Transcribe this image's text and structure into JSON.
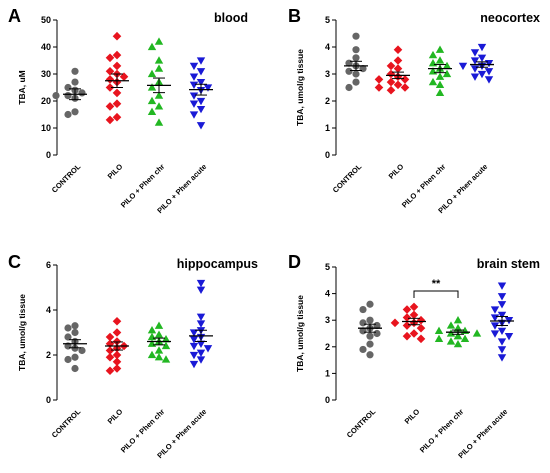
{
  "chart_data": [
    {
      "type": "scatter",
      "letter": "A",
      "title": "blood",
      "ylabel": "TBA, uM",
      "ylim": [
        0,
        50
      ],
      "yticks": [
        0,
        10,
        20,
        30,
        40,
        50
      ],
      "categories": [
        "CONTROL",
        "PILO",
        "PILO + Phen chr",
        "PILO + Phen acute"
      ],
      "series": [
        {
          "color": "#666666",
          "marker": "circle",
          "values": [
            31,
            27,
            25,
            24,
            23,
            22,
            22,
            21,
            16,
            15
          ],
          "mean": 22.5,
          "err": 2
        },
        {
          "color": "#e8141e",
          "marker": "diamond",
          "values": [
            44,
            37,
            36,
            33,
            31,
            30,
            29,
            28,
            27,
            25,
            23,
            19,
            18,
            14,
            13
          ],
          "mean": 27.5,
          "err": 2.5
        },
        {
          "color": "#22b722",
          "marker": "triangle-up",
          "values": [
            42,
            40,
            35,
            32,
            30,
            27,
            25,
            22,
            20,
            18,
            16,
            12
          ],
          "mean": 25.8,
          "err": 2.7
        },
        {
          "color": "#1a1ad6",
          "marker": "triangle-down",
          "values": [
            35,
            33,
            31,
            29,
            27,
            26,
            25,
            24,
            22,
            20,
            19,
            17,
            15,
            11
          ],
          "mean": 24.2,
          "err": 2
        }
      ]
    },
    {
      "type": "scatter",
      "letter": "B",
      "title": "neocortex",
      "ylabel": "TBA, umol/g tissue",
      "ylim": [
        0,
        5
      ],
      "yticks": [
        0,
        1,
        2,
        3,
        4,
        5
      ],
      "categories": [
        "CONTROL",
        "PILO",
        "PILO + Phen chr",
        "PILO + Phen acute"
      ],
      "series": [
        {
          "color": "#666666",
          "marker": "circle",
          "values": [
            4.4,
            3.9,
            3.6,
            3.4,
            3.3,
            3.2,
            3.1,
            3.0,
            2.7,
            2.5
          ],
          "mean": 3.3,
          "err": 0.17
        },
        {
          "color": "#e8141e",
          "marker": "diamond",
          "values": [
            3.9,
            3.5,
            3.3,
            3.2,
            3.0,
            2.9,
            2.8,
            2.8,
            2.7,
            2.6,
            2.5,
            2.5,
            2.4
          ],
          "mean": 2.95,
          "err": 0.12
        },
        {
          "color": "#22b722",
          "marker": "triangle-up",
          "values": [
            3.9,
            3.7,
            3.5,
            3.4,
            3.3,
            3.2,
            3.1,
            3.0,
            2.9,
            2.7,
            2.6,
            2.3
          ],
          "mean": 3.2,
          "err": 0.15
        },
        {
          "color": "#1a1ad6",
          "marker": "triangle-down",
          "values": [
            4.0,
            3.8,
            3.6,
            3.5,
            3.4,
            3.3,
            3.3,
            3.2,
            3.1,
            3.0,
            2.9,
            2.8
          ],
          "mean": 3.35,
          "err": 0.1
        }
      ]
    },
    {
      "type": "scatter",
      "letter": "C",
      "title": "hippocampus",
      "ylabel": "TBA, umol/g tissue",
      "ylim": [
        0,
        6
      ],
      "yticks": [
        0,
        2,
        4,
        6
      ],
      "categories": [
        "CONTROL",
        "PILO",
        "PILO + Phen chr",
        "PILO + Phen acute"
      ],
      "series": [
        {
          "color": "#666666",
          "marker": "circle",
          "values": [
            3.3,
            3.2,
            3.0,
            2.8,
            2.6,
            2.4,
            2.3,
            2.2,
            1.9,
            1.8,
            1.4
          ],
          "mean": 2.5,
          "err": 0.18
        },
        {
          "color": "#e8141e",
          "marker": "diamond",
          "values": [
            3.5,
            3.0,
            2.8,
            2.6,
            2.5,
            2.4,
            2.3,
            2.2,
            2.0,
            1.9,
            1.7,
            1.4,
            1.3
          ],
          "mean": 2.4,
          "err": 0.18
        },
        {
          "color": "#22b722",
          "marker": "triangle-up",
          "values": [
            3.3,
            3.1,
            2.9,
            2.8,
            2.7,
            2.6,
            2.5,
            2.4,
            2.2,
            2.0,
            1.9,
            1.8
          ],
          "mean": 2.6,
          "err": 0.15
        },
        {
          "color": "#1a1ad6",
          "marker": "triangle-down",
          "values": [
            5.2,
            4.9,
            3.7,
            3.4,
            3.1,
            3.0,
            2.8,
            2.7,
            2.5,
            2.4,
            2.3,
            2.1,
            2.0,
            1.8,
            1.6
          ],
          "mean": 2.85,
          "err": 0.25
        }
      ]
    },
    {
      "type": "scatter",
      "letter": "D",
      "title": "brain stem",
      "ylabel": "TBA, umol/g tissue",
      "ylim": [
        0,
        5
      ],
      "yticks": [
        0,
        1,
        2,
        3,
        4,
        5
      ],
      "categories": [
        "CONTROL",
        "PILO",
        "PILO + Phen chr",
        "PILO + Phen acute"
      ],
      "significance": {
        "from": 1,
        "to": 2,
        "label": "**"
      },
      "series": [
        {
          "color": "#666666",
          "marker": "circle",
          "values": [
            3.6,
            3.4,
            3.0,
            2.9,
            2.8,
            2.7,
            2.6,
            2.5,
            2.4,
            2.1,
            1.9,
            1.7
          ],
          "mean": 2.7,
          "err": 0.15
        },
        {
          "color": "#e8141e",
          "marker": "diamond",
          "values": [
            3.5,
            3.4,
            3.2,
            3.1,
            3.0,
            2.9,
            2.9,
            2.8,
            2.7,
            2.5,
            2.4,
            2.3
          ],
          "mean": 2.95,
          "err": 0.12
        },
        {
          "color": "#22b722",
          "marker": "triangle-up",
          "values": [
            3.0,
            2.8,
            2.7,
            2.6,
            2.6,
            2.5,
            2.5,
            2.4,
            2.4,
            2.3,
            2.3,
            2.2,
            2.1
          ],
          "mean": 2.55,
          "err": 0.08
        },
        {
          "color": "#1a1ad6",
          "marker": "triangle-down",
          "values": [
            4.3,
            3.9,
            3.6,
            3.4,
            3.2,
            3.1,
            3.0,
            2.9,
            2.8,
            2.6,
            2.5,
            2.4,
            2.2,
            1.9,
            1.6
          ],
          "mean": 2.97,
          "err": 0.17
        }
      ]
    }
  ]
}
